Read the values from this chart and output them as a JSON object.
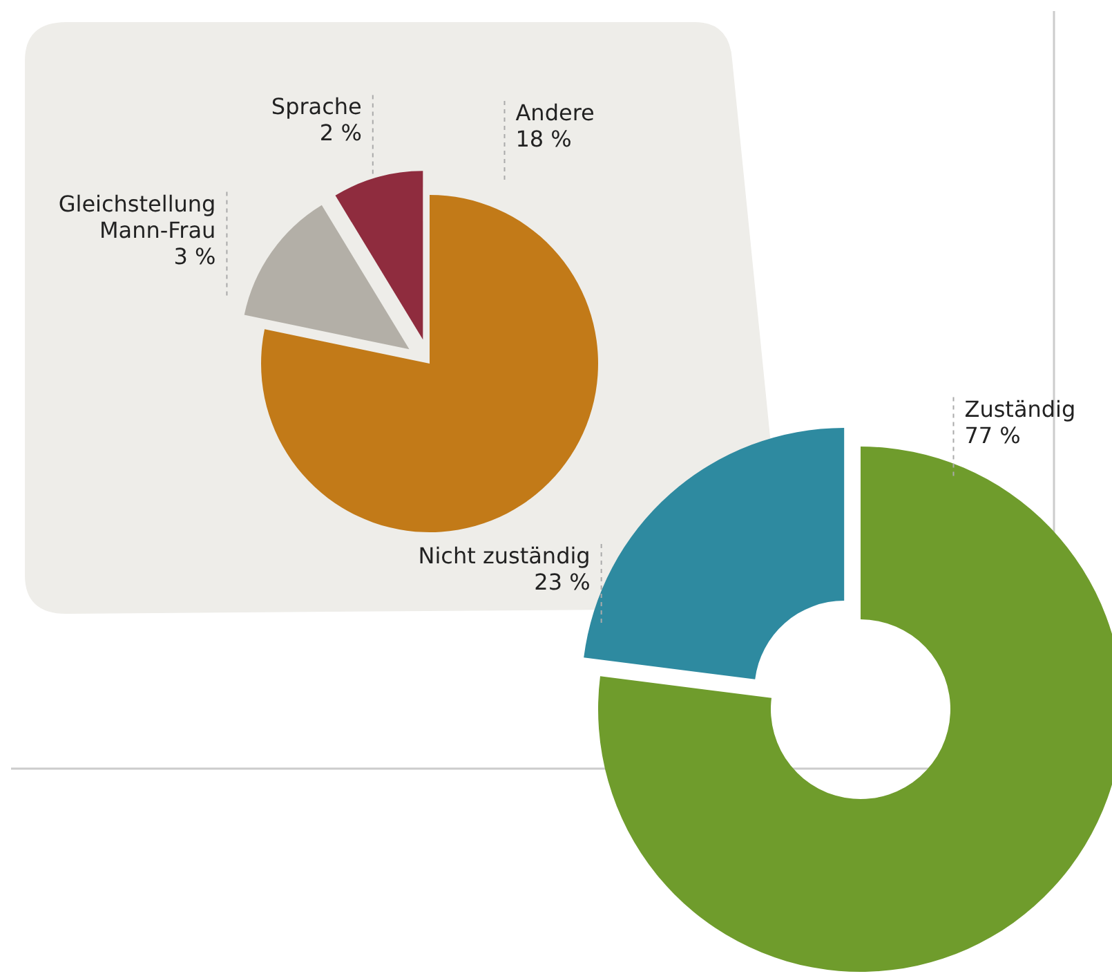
{
  "chart_data": [
    {
      "type": "pie",
      "categories": [
        "Andere",
        "Gleichstellung Mann-Frau",
        "Sprache"
      ],
      "values": [
        18,
        3,
        2
      ],
      "value_labels": [
        "18 %",
        "3 %",
        "2 %"
      ],
      "colors": [
        "#c27a18",
        "#b3afa7",
        "#8f2c3e"
      ]
    },
    {
      "type": "donut",
      "categories": [
        "Zuständig",
        "Nicht zuständig"
      ],
      "values": [
        77,
        23
      ],
      "value_labels": [
        "77 %",
        "23 %"
      ],
      "colors": [
        "#6f9c2c",
        "#2e8aa0"
      ]
    }
  ]
}
